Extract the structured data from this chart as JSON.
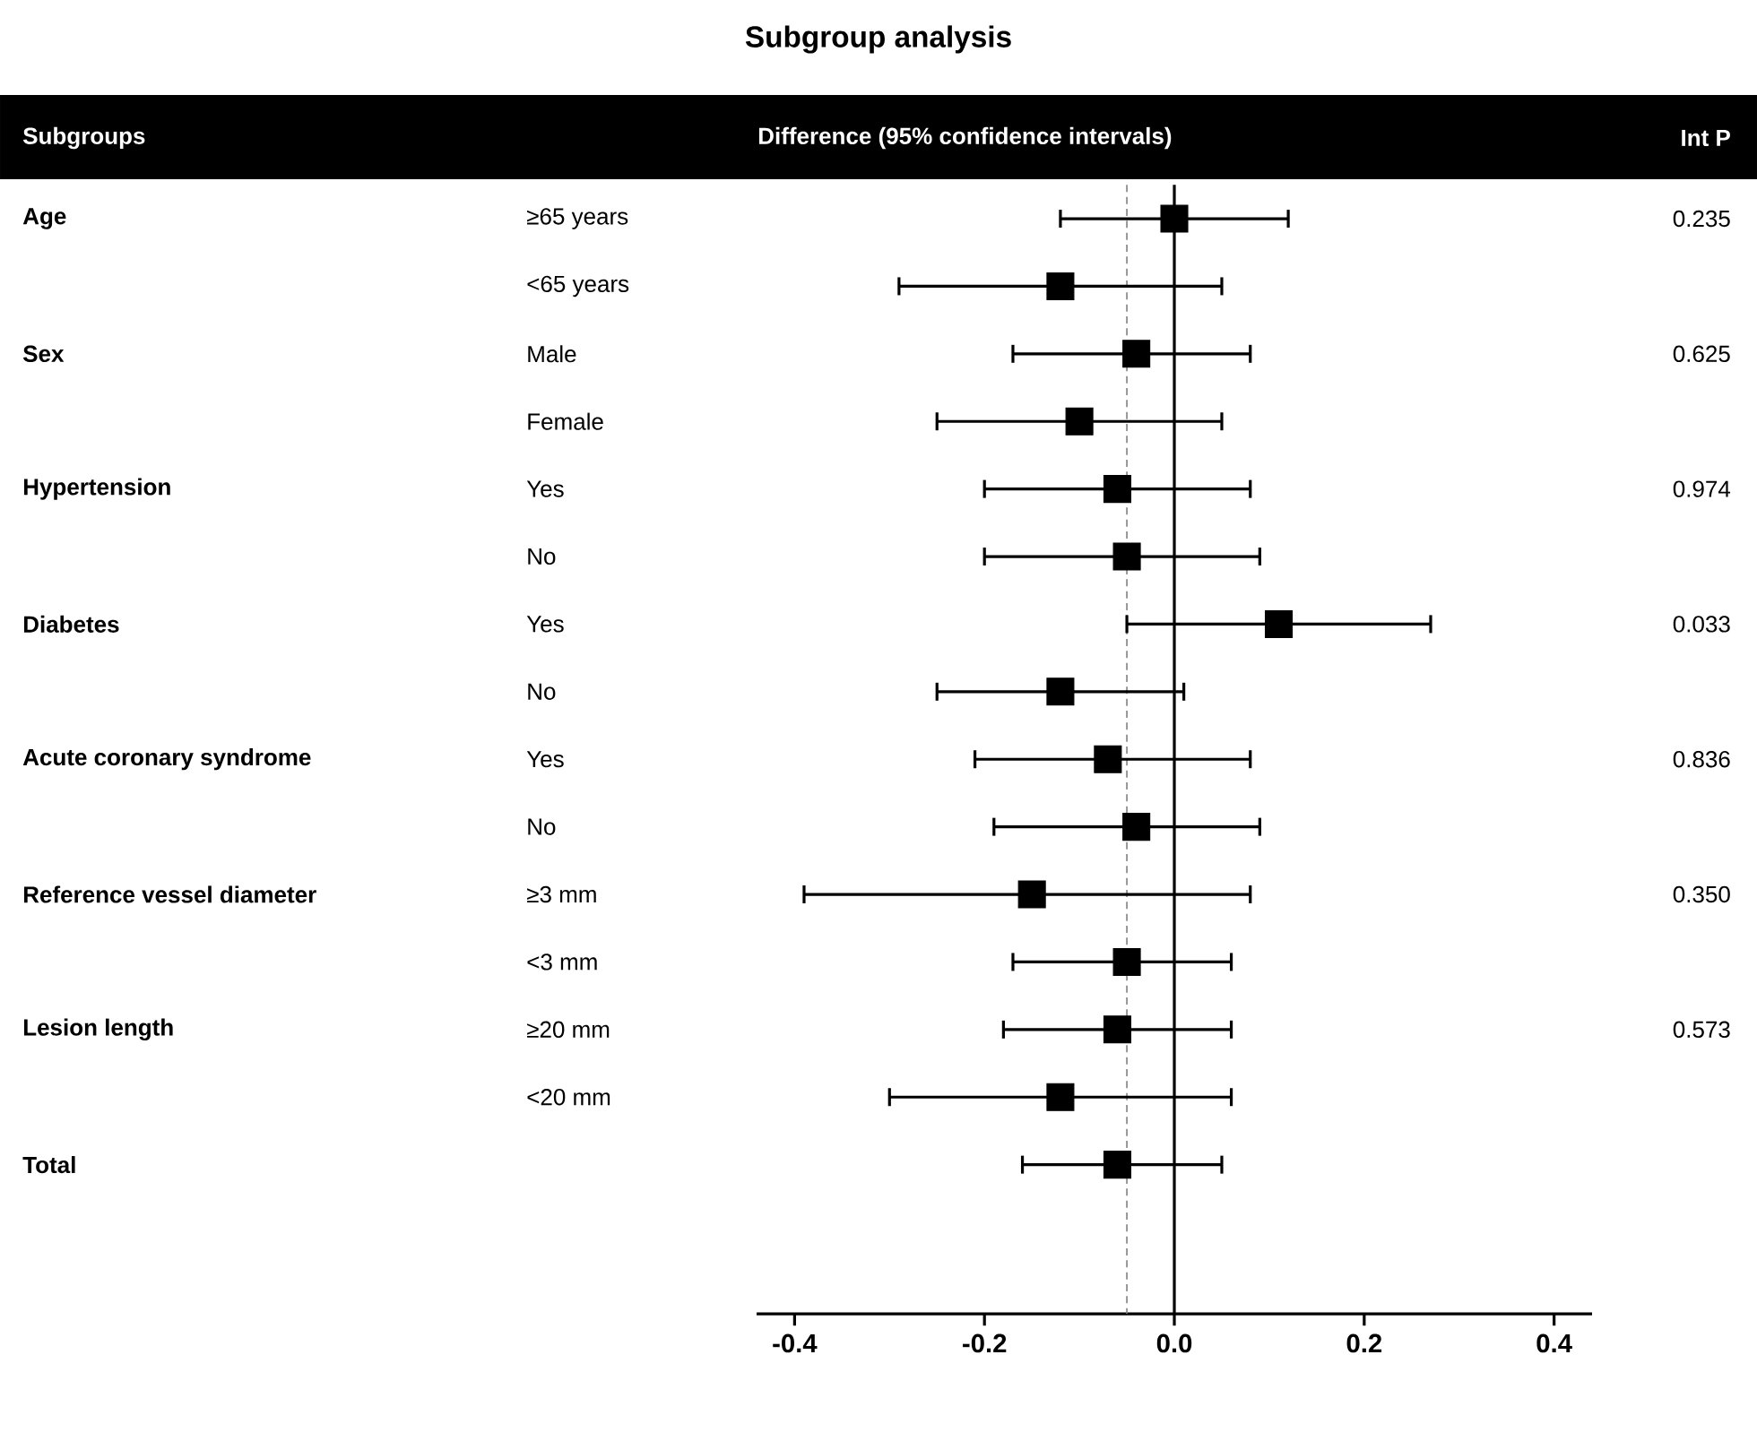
{
  "chart_data": {
    "type": "scatter",
    "orientation": "horizontal",
    "title": "Subgroup analysis",
    "xlabel": "Difference (95% confidence intervals)",
    "y2label": "Int P",
    "categories": [
      "≥65 years",
      "<65 years",
      "Male",
      "Female",
      "Yes",
      "No",
      "Yes",
      "No",
      "Yes",
      "No",
      "≥3 mm",
      "<3 mm",
      "≥20 mm",
      "<20 mm",
      null
    ],
    "y2_categories": [
      "0.235",
      null,
      "0.625",
      null,
      "0.974",
      null,
      "0.033",
      null,
      "0.836",
      null,
      "0.350",
      null,
      "0.573",
      null,
      null
    ],
    "values": [
      0.0,
      -0.12,
      -0.04,
      -0.1,
      -0.06,
      -0.05,
      0.11,
      -0.12,
      -0.07,
      -0.04,
      -0.15,
      -0.05,
      -0.06,
      -0.12,
      -0.06
    ],
    "errors": [
      [
        -0.12,
        0.12
      ],
      [
        -0.29,
        0.05
      ],
      [
        -0.17,
        0.08
      ],
      [
        -0.25,
        0.05
      ],
      [
        -0.2,
        0.08
      ],
      [
        -0.2,
        0.09
      ],
      [
        -0.05,
        0.27
      ],
      [
        -0.25,
        0.01
      ],
      [
        -0.21,
        0.08
      ],
      [
        -0.19,
        0.09
      ],
      [
        -0.39,
        0.08
      ],
      [
        -0.17,
        0.06
      ],
      [
        -0.18,
        0.06
      ],
      [
        -0.3,
        0.06
      ],
      [
        -0.16,
        0.05
      ]
    ],
    "color": "#000000",
    "marker": "square",
    "xlim": [
      -0.44,
      0.44
    ],
    "xticks": [
      -0.4,
      -0.2,
      {
        "value": 0,
        "label": "0.0"
      },
      0.2,
      0.4
    ],
    "ref_lines": [
      {
        "axis": "x",
        "value": 0,
        "color": "#000000",
        "line_style": "solid"
      },
      {
        "axis": "x",
        "value": -0.05,
        "color": "#808080",
        "line_style": "dashed"
      }
    ],
    "annotations": [
      "Subgroups",
      "Age",
      "Sex",
      "Hypertension",
      "Diabetes",
      "Acute coronary syndrome",
      "Reference vessel diameter",
      "Lesion length",
      "Total"
    ]
  }
}
